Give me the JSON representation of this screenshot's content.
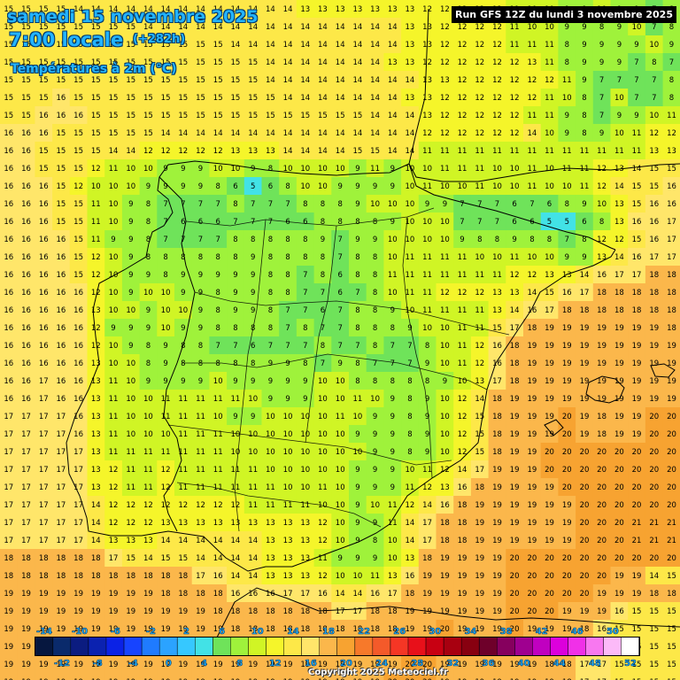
{
  "header": {
    "date": "samedi 15 novembre 2025",
    "local_time": "7:00 locale",
    "lead_time": "(+282h)",
    "variable": "Températures à 2m (°C)",
    "run": "Run GFS 12Z du lundi 3 novembre 2025"
  },
  "footer": {
    "copyright": "Copyright 2025 Meteociel.fr"
  },
  "colors": {
    "coastline": "#000000",
    "label_text": "#000000",
    "stop_6": "#6fe35a",
    "stop_8": "#9ff23b",
    "stop_10": "#d0f525",
    "stop_12": "#f5f52a",
    "stop_14": "#fde848",
    "stop_16": "#ffe66a",
    "stop_18": "#fbb74b",
    "stop_20": "#f7a331"
  },
  "legend": {
    "scale": [
      {
        "v": -14,
        "c": "#06173f"
      },
      {
        "v": -12,
        "c": "#0a2a6b"
      },
      {
        "v": -10,
        "c": "#0b1c80"
      },
      {
        "v": -8,
        "c": "#0b22b0"
      },
      {
        "v": -6,
        "c": "#0b22e6"
      },
      {
        "v": -4,
        "c": "#1744ff"
      },
      {
        "v": -2,
        "c": "#1f7bff"
      },
      {
        "v": 0,
        "c": "#2ba3ff"
      },
      {
        "v": 2,
        "c": "#36c8ff"
      },
      {
        "v": 4,
        "c": "#42e2e6"
      },
      {
        "v": 6,
        "c": "#6fe35a"
      },
      {
        "v": 8,
        "c": "#9ff23b"
      },
      {
        "v": 10,
        "c": "#d0f525"
      },
      {
        "v": 12,
        "c": "#f5f52a"
      },
      {
        "v": 14,
        "c": "#fde848"
      },
      {
        "v": 16,
        "c": "#ffe66a"
      },
      {
        "v": 18,
        "c": "#fbb74b"
      },
      {
        "v": 20,
        "c": "#f7a331"
      },
      {
        "v": 22,
        "c": "#f7792a"
      },
      {
        "v": 24,
        "c": "#f45a2a"
      },
      {
        "v": 26,
        "c": "#f53625"
      },
      {
        "v": 28,
        "c": "#e8101a"
      },
      {
        "v": 30,
        "c": "#c80012"
      },
      {
        "v": 32,
        "c": "#a80010"
      },
      {
        "v": 34,
        "c": "#880010"
      },
      {
        "v": 36,
        "c": "#6e002a"
      },
      {
        "v": 38,
        "c": "#86005e"
      },
      {
        "v": 40,
        "c": "#9f0090"
      },
      {
        "v": 42,
        "c": "#c000c0"
      },
      {
        "v": 44,
        "c": "#dc00dc"
      },
      {
        "v": 46,
        "c": "#f030e8"
      },
      {
        "v": 48,
        "c": "#f878f0"
      },
      {
        "v": 50,
        "c": "#fcbaf8"
      },
      {
        "v": 52,
        "c": "#ffffff"
      }
    ],
    "top_labels": [
      "-14",
      "-10",
      "-6",
      "-2",
      "2",
      "6",
      "10",
      "14",
      "18",
      "22",
      "26",
      "30",
      "34",
      "38",
      "42",
      "46",
      "50"
    ],
    "bottom_labels": [
      "-12",
      "-8",
      "-4",
      "0",
      "4",
      "8",
      "12",
      "16",
      "20",
      "24",
      "28",
      "32",
      "36",
      "40",
      "44",
      "48",
      "52"
    ]
  },
  "grid_rows": [
    "15 15 15 15 14 14 14 14 14 14 14 14 14 14 14 14 14 13 13 13 13 13 13 13 12 12 12 12 12 11 10 10 9 9 10 9 9 7 8",
    "15 15 15 15 15 15 15 15 14 14 14 14 14 14 14 14 14 14 14 14 14 14 14 13 13 12 12 12 12 11 10 10 9 9 8 9 10 7 8",
    "15 15 15 15 15 15 15 15 15 15 15 15 15 14 14 14 14 14 14 14 14 14 14 13 13 12 12 12 12 11 11 11 8 9 9 9 9 10 9",
    "15 15 15 15 15 15 15 15 15 15 15 15 15 15 15 14 14 14 14 14 14 14 13 13 12 12 12 12 12 12 13 11 8 9 9 9 7 8 7",
    "15 15 15 15 15 15 15 15 15 15 15 15 15 15 15 14 14 14 14 14 14 14 14 14 13 13 12 12 12 12 12 12 11 9 7 7 7 7 8",
    "15 15 15 16 15 15 15 15 15 15 15 15 15 15 15 15 14 14 14 14 14 14 14 13 13 12 12 12 12 12 12 11 10 8 7 10 7 7 8",
    "15 15 16 16 16 15 15 15 15 15 15 15 15 15 15 15 15 15 15 15 15 14 14 14 13 12 12 12 12 12 11 11 9 8 7 9 9 10 11",
    "16 16 16 15 15 15 15 15 15 14 14 14 14 14 14 14 14 14 14 14 14 14 14 14 12 12 12 12 12 12 14 10 9 8 9 10 11 12 12",
    "16 16 15 15 15 15 14 14 12 12 12 12 12 13 13 13 14 14 14 14 15 15 14 14 11 11 11 11 11 11 11 11 11 11 11 11 11 13 13",
    "16 16 15 15 15 12 11 10 10 9 9 9 10 10 9 8 10 10 10 10 9 11 9 10 10 11 11 11 10 10 11 10 11 11 12 13 14 15 15",
    "16 16 16 15 12 10 10 10 9 9 9 9 8 6 5 6 8 10 10 9 9 9 9 10 11 10 10 11 10 10 11 10 10 11 12 14 15 15 16",
    "16 16 16 15 15 11 10 9 8 7 7 7 7 8 7 7 7 8 8 8 9 10 10 10 9 9 7 7 7 6 7 6 8 9 10 13 15 16 16",
    "16 16 16 15 15 11 10 9 8 7 6 6 6 7 7 7 6 6 8 8 8 8 9 10 10 10 7 7 7 6 6 5 5 6 8 13 16 16 17",
    "16 16 16 16 15 11 9 9 8 7 7 7 7 8 8 8 8 8 9 7 9 9 10 10 10 10 9 8 8 9 8 8 7 8 12 12 15 16 17",
    "16 16 16 16 15 12 10 9 8 8 8 8 8 8 9 8 8 8 8 7 8 8 10 11 11 11 11 10 10 11 10 10 9 9 13 14 16 17 17",
    "16 16 16 16 15 12 10 9 9 8 9 9 9 9 9 8 8 7 8 6 8 8 11 11 11 11 11 11 11 12 12 13 13 14 16 17 17 18 18",
    "16 16 16 16 16 12 10 9 10 10 9 9 8 9 9 8 8 7 7 6 7 8 10 11 11 12 12 12 13 13 14 15 16 17 18 18 18 18 18",
    "16 16 16 16 16 13 10 10 9 10 10 9 8 9 9 8 7 7 6 7 8 8 9 10 11 11 11 11 13 14 16 17 18 18 18 18 18 18 18",
    "16 16 16 16 16 12 9 9 9 10 9 9 8 8 8 8 7 8 7 7 8 8 8 9 10 10 11 11 15 17 18 19 19 19 19 19 19 19 18",
    "16 16 16 16 16 12 10 9 8 9 8 8 7 7 6 7 7 7 8 7 7 8 7 7 8 10 11 12 16 18 19 19 19 19 19 19 19 19 19",
    "16 16 16 16 16 13 10 10 8 9 8 8 8 8 8 9 9 8 7 9 8 7 7 7 9 10 11 12 16 18 19 19 19 19 19 19 19 19 19",
    "16 16 17 16 16 13 11 10 9 9 9 9 10 9 9 9 9 9 10 10 8 8 8 8 8 9 10 13 17 18 19 19 19 19 19 19 19 19 19",
    "16 16 17 16 16 13 11 10 10 11 11 11 11 11 10 9 9 9 10 10 11 10 9 8 9 10 12 14 18 19 19 19 19 19 19 19 19 19 19",
    "17 17 17 17 16 13 11 10 10 11 11 11 10 9 9 10 10 10 10 11 10 9 9 8 9 10 12 15 18 19 19 19 20 19 18 19 19 20 20",
    "17 17 17 17 16 13 11 10 10 10 11 11 11 10 10 10 10 10 10 10 9 9 9 8 9 10 12 15 18 19 19 19 20 19 18 19 19 20 20",
    "17 17 17 17 17 13 11 11 11 11 11 11 11 10 10 10 10 10 10 10 10 9 9 8 9 10 12 15 18 19 19 20 20 20 20 20 20 20 20",
    "17 17 17 17 17 13 12 11 11 12 11 11 11 11 11 10 10 10 10 10 9 9 9 10 11 12 14 17 19 19 19 20 20 20 20 20 20 20 20",
    "17 17 17 17 17 13 12 11 11 12 11 11 11 11 11 11 10 10 11 10 9 9 9 11 12 13 16 18 19 19 19 19 20 20 20 20 20 20 20",
    "17 17 17 17 17 14 12 12 12 12 12 12 12 12 11 11 11 11 10 10 9 10 11 12 14 16 18 19 19 19 19 19 19 20 20 20 20 20 20",
    "17 17 17 17 17 14 12 12 12 13 13 13 13 13 13 13 13 13 12 10 9 9 11 14 17 18 18 19 19 19 19 19 19 20 20 20 21 21 21",
    "17 17 17 17 17 14 13 13 13 14 14 14 14 14 14 13 13 13 12 10 9 8 10 14 17 18 18 19 19 19 19 19 19 20 20 20 21 21 21",
    "18 18 18 18 18 18 17 15 14 15 15 14 14 14 14 13 13 13 11 9 9 9 10 13 18 19 19 19 19 20 20 20 20 20 20 20 20 20 20",
    "18 18 18 18 18 18 18 18 18 18 18 17 16 14 14 13 13 13 12 10 10 11 13 16 19 19 19 19 19 20 20 20 20 20 20 19 19 14 15",
    "19 19 19 19 19 19 19 19 19 18 18 18 18 16 16 16 17 17 16 14 14 16 17 18 19 19 19 19 19 20 20 20 20 20 19 19 19 18 18",
    "19 19 19 19 19 19 19 19 19 19 19 19 18 18 18 18 18 18 18 17 17 18 18 19 19 19 19 19 19 20 20 20 19 19 19 16 15 15 15",
    "19 19 19 19 19 19 19 19 19 19 19 19 19 18 18 18 18 18 18 18 18 18 18 19 19 20 19 19 19 20 19 19 19 18 16 15 15 15 15",
    "19 19 19 19 19 19 19 19 19 19 19 19 19 19 19 19 19 19 19 19 19 19 19 19 20 20 19 19 19 19 19 19 18 17 15 15 15 15 15",
    "19 19 19 19 19 19 19 19 19 19 19 19 19 19 19 19 19 19 19 19 19 19 19 20 20 19 19 19 19 19 19 18 18 17 17 15 15 15 15",
    "19 19 19 19 19 19 19 19 19 19 19 19 19 19 19 19 19 19 19 19 19 19 20 20 20 19 19 19 19 19 19 19 18 17 17 15 15 15 15",
    "20 20 20 20 20 20 20 20 19 19 19 19 19 19 19 19 19 19 19 19 19 19 20 20 20 20 19 19 19 19 19 19 19 18 17 17 15 15 15"
  ]
}
